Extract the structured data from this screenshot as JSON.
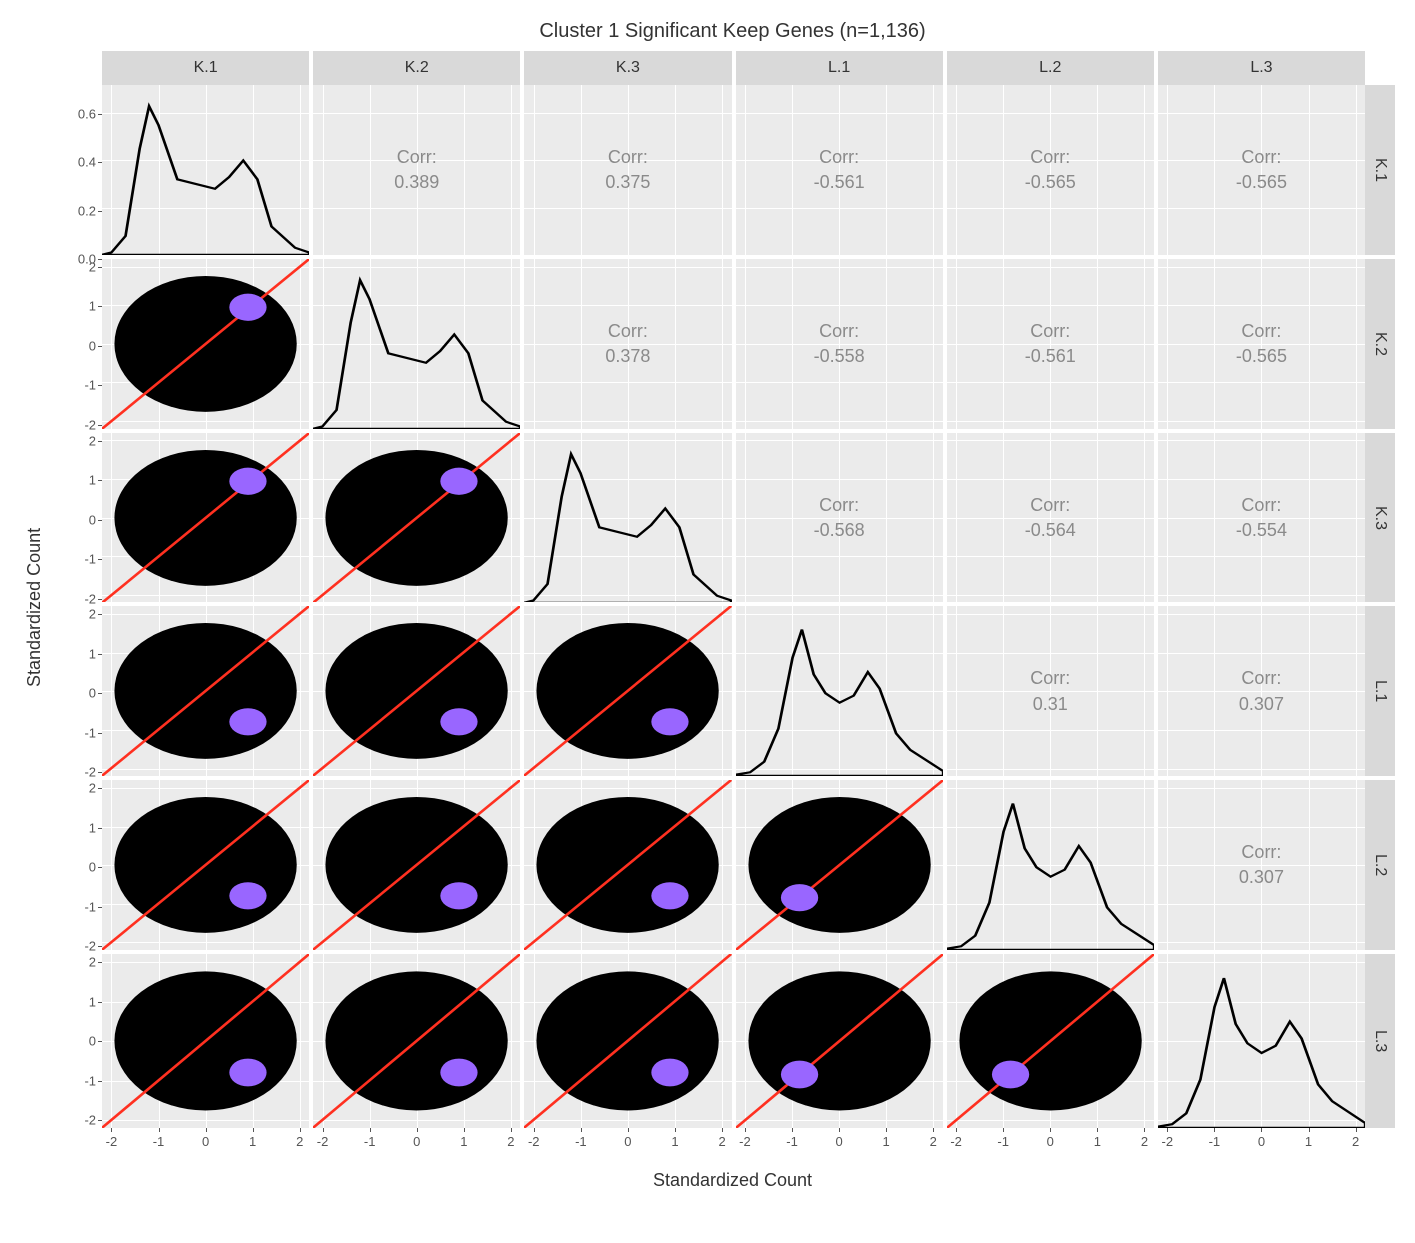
{
  "title": "Cluster 1 Significant Keep Genes (n=1,136)",
  "xlabel": "Standardized Count",
  "ylabel": "Standardized Count",
  "vars": [
    "K.1",
    "K.2",
    "K.3",
    "L.1",
    "L.2",
    "L.3"
  ],
  "colors": {
    "background": "#ebebeb",
    "strip": "#d9d9d9",
    "gridline": "#ffffff",
    "scatter_black": "#000000",
    "scatter_purple": "#9966ff",
    "diag_line": "#ff3020",
    "density_stroke": "#000000",
    "corr_text": "#8a8a8a"
  },
  "corr": [
    [
      null,
      0.389,
      0.375,
      -0.561,
      -0.565,
      -0.565
    ],
    [
      null,
      null,
      0.378,
      -0.558,
      -0.561,
      -0.565
    ],
    [
      null,
      null,
      null,
      -0.568,
      -0.564,
      -0.554
    ],
    [
      null,
      null,
      null,
      null,
      0.31,
      0.307
    ],
    [
      null,
      null,
      null,
      null,
      null,
      0.307
    ],
    [
      null,
      null,
      null,
      null,
      null,
      null
    ]
  ],
  "axis": {
    "scatter_ticks": [
      -2,
      -1,
      0,
      1,
      2
    ],
    "scatter_lim": [
      -2.2,
      2.2
    ],
    "diag0_yticks": [
      0.0,
      0.2,
      0.4,
      0.6
    ],
    "diag0_ymax": 0.72
  },
  "purple_centers": [
    [
      null,
      [
        0.9,
        0.95
      ],
      [
        0.9,
        0.95
      ],
      [
        0.9,
        -0.8
      ],
      [
        0.9,
        -0.8
      ],
      [
        0.9,
        -0.8
      ]
    ],
    [
      null,
      null,
      [
        0.9,
        0.95
      ],
      [
        0.9,
        -0.8
      ],
      [
        0.9,
        -0.8
      ],
      [
        0.9,
        -0.8
      ]
    ],
    [
      null,
      null,
      null,
      [
        0.9,
        -0.8
      ],
      [
        0.9,
        -0.8
      ],
      [
        0.9,
        -0.8
      ]
    ],
    [
      null,
      null,
      null,
      null,
      [
        -0.85,
        -0.85
      ],
      [
        -0.85,
        -0.85
      ]
    ],
    [
      null,
      null,
      null,
      null,
      null,
      [
        -0.85,
        -0.85
      ]
    ],
    [
      null,
      null,
      null,
      null,
      null,
      null
    ]
  ],
  "density_paths": {
    "K": [
      [
        -2.2,
        0
      ],
      [
        -2.0,
        0.01
      ],
      [
        -1.7,
        0.08
      ],
      [
        -1.4,
        0.45
      ],
      [
        -1.2,
        0.63
      ],
      [
        -1.0,
        0.55
      ],
      [
        -0.6,
        0.32
      ],
      [
        -0.2,
        0.3
      ],
      [
        0.2,
        0.28
      ],
      [
        0.5,
        0.33
      ],
      [
        0.8,
        0.4
      ],
      [
        1.1,
        0.32
      ],
      [
        1.4,
        0.12
      ],
      [
        1.9,
        0.03
      ],
      [
        2.2,
        0.01
      ]
    ],
    "L": [
      [
        -2.2,
        0.005
      ],
      [
        -1.9,
        0.015
      ],
      [
        -1.6,
        0.06
      ],
      [
        -1.3,
        0.2
      ],
      [
        -1.0,
        0.5
      ],
      [
        -0.8,
        0.62
      ],
      [
        -0.55,
        0.43
      ],
      [
        -0.3,
        0.35
      ],
      [
        0.0,
        0.31
      ],
      [
        0.3,
        0.34
      ],
      [
        0.6,
        0.44
      ],
      [
        0.85,
        0.37
      ],
      [
        1.2,
        0.18
      ],
      [
        1.5,
        0.11
      ],
      [
        2.2,
        0.02
      ]
    ]
  },
  "font_sizes": {
    "title": 20,
    "axis_label": 18,
    "strip": 16,
    "corr": 18,
    "tick": 13
  }
}
